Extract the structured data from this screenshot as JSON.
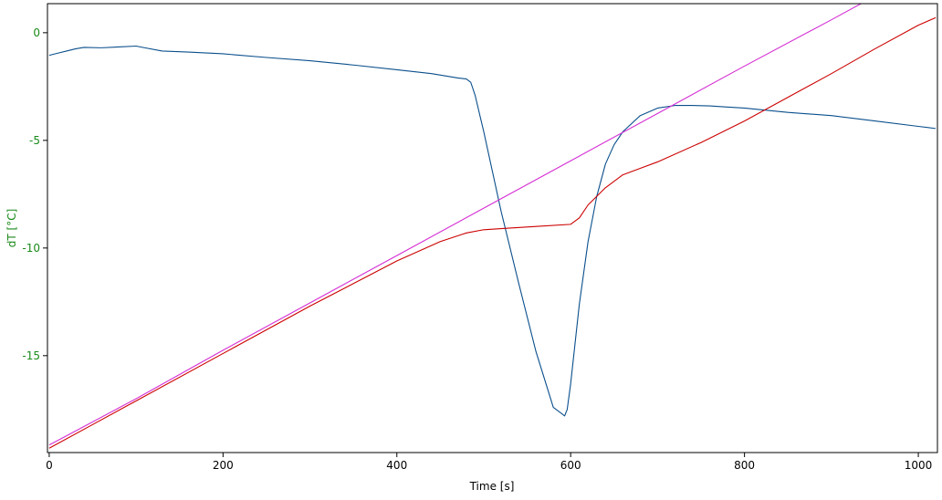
{
  "chart_data": {
    "type": "line",
    "title": "",
    "xlabel": "Time [s]",
    "ylabel": "dT [°C]",
    "xlim": [
      -2,
      1022
    ],
    "ylim": [
      -19.5,
      1.35
    ],
    "x_ticks": [
      0,
      200,
      400,
      600,
      800,
      1000
    ],
    "y_ticks": [
      0,
      -5,
      -10,
      -15
    ],
    "grid": false,
    "legend": "none",
    "colors": {
      "axis": "#000000",
      "ytick_text": "#1a8a1a",
      "ylabel_text": "#1a8a1a",
      "xtick_text": "#000000"
    },
    "series": [
      {
        "color": "#0a4f8c",
        "x": [
          0,
          10,
          20,
          30,
          40,
          60,
          80,
          100,
          110,
          130,
          160,
          200,
          250,
          300,
          350,
          400,
          440,
          470,
          480,
          485,
          490,
          500,
          520,
          540,
          560,
          580,
          590,
          593,
          596,
          600,
          610,
          620,
          630,
          640,
          650,
          660,
          680,
          700,
          720,
          740,
          760,
          780,
          800,
          850,
          900,
          950,
          1000,
          1020
        ],
        "y": [
          -1.05,
          -0.95,
          -0.85,
          -0.75,
          -0.68,
          -0.7,
          -0.66,
          -0.62,
          -0.7,
          -0.85,
          -0.9,
          -0.98,
          -1.15,
          -1.3,
          -1.5,
          -1.72,
          -1.9,
          -2.1,
          -2.15,
          -2.3,
          -2.9,
          -4.6,
          -8.3,
          -11.6,
          -14.8,
          -17.4,
          -17.7,
          -17.8,
          -17.5,
          -16.3,
          -12.6,
          -9.7,
          -7.6,
          -6.1,
          -5.2,
          -4.6,
          -3.85,
          -3.5,
          -3.38,
          -3.38,
          -3.4,
          -3.45,
          -3.5,
          -3.7,
          -3.85,
          -4.1,
          -4.35,
          -4.45
        ]
      },
      {
        "color": "#cc0000",
        "x": [
          0,
          50,
          100,
          200,
          300,
          400,
          450,
          480,
          500,
          520,
          560,
          600,
          610,
          620,
          640,
          660,
          680,
          700,
          750,
          800,
          850,
          900,
          950,
          1000,
          1020
        ],
        "y": [
          -19.3,
          -18.2,
          -17.1,
          -14.9,
          -12.7,
          -10.6,
          -9.7,
          -9.3,
          -9.15,
          -9.1,
          -9.0,
          -8.9,
          -8.6,
          -8.0,
          -7.2,
          -6.6,
          -6.3,
          -6.0,
          -5.1,
          -4.1,
          -3.0,
          -1.9,
          -0.75,
          0.35,
          0.7
        ]
      },
      {
        "color": "#d42ed4",
        "x": [
          0,
          100,
          200,
          300,
          400,
          500,
          600,
          700,
          800,
          900,
          1000,
          1020
        ],
        "y": [
          -19.15,
          -17.0,
          -14.75,
          -12.55,
          -10.35,
          -8.15,
          -5.95,
          -3.75,
          -1.55,
          0.6,
          2.8,
          3.25
        ]
      }
    ]
  }
}
